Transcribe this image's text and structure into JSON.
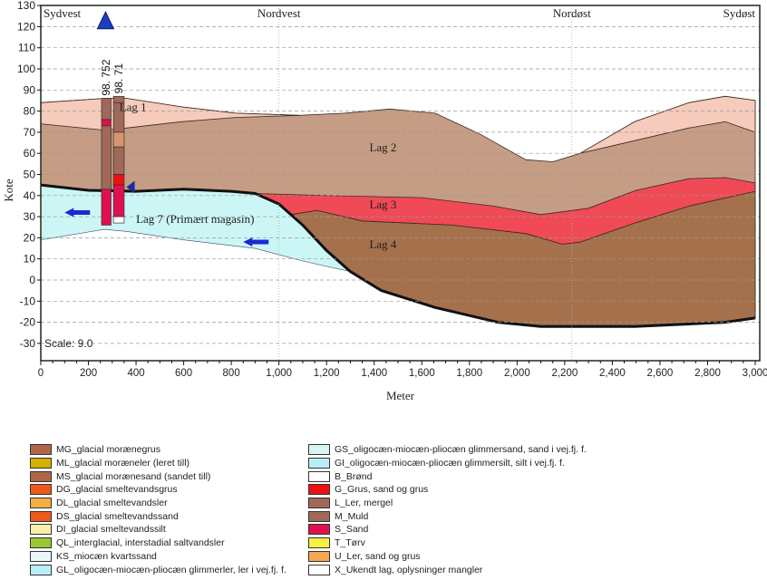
{
  "chart_data": {
    "type": "area",
    "title": "",
    "xlabel": "Meter",
    "ylabel": "Kote",
    "xlim": [
      0,
      3000
    ],
    "ylim": [
      -38,
      130
    ],
    "x_ticks": [
      "0",
      "200",
      "400",
      "600",
      "800",
      "1,000",
      "1,200",
      "1,400",
      "1,600",
      "1,800",
      "2,000",
      "2,200",
      "2,400",
      "2,600",
      "2,800",
      "3,000"
    ],
    "y_ticks": [
      -30,
      -20,
      -10,
      0,
      10,
      20,
      30,
      40,
      50,
      60,
      70,
      80,
      90,
      100,
      110,
      120,
      130
    ],
    "grid": true,
    "scale_label": "Scale: 9.0",
    "directions": [
      {
        "label": "Sydvest",
        "x": 0
      },
      {
        "label": "Nordvest",
        "x": 1000
      },
      {
        "label": "Nordøst",
        "x": 2230
      },
      {
        "label": "Sydøst",
        "x": 3000
      }
    ],
    "boundaries": {
      "terrain": [
        [
          0,
          84
        ],
        [
          266,
          86
        ],
        [
          362,
          86
        ],
        [
          590,
          82
        ],
        [
          818,
          79
        ],
        [
          1085,
          78
        ],
        [
          1275,
          79
        ],
        [
          1465,
          81
        ],
        [
          1656,
          79
        ],
        [
          1846,
          69
        ],
        [
          2036,
          57
        ],
        [
          2150,
          56
        ],
        [
          2265,
          60
        ],
        [
          2494,
          75
        ],
        [
          2722,
          84
        ],
        [
          2874,
          87
        ],
        [
          3000,
          85
        ]
      ],
      "lag1_base_west": [
        [
          0,
          74
        ],
        [
          266,
          71
        ],
        [
          362,
          72
        ],
        [
          590,
          75
        ],
        [
          818,
          77
        ],
        [
          1085,
          78
        ]
      ],
      "lag1_base_east": [
        [
          2265,
          60
        ],
        [
          2494,
          66
        ],
        [
          2722,
          72
        ],
        [
          2874,
          75
        ],
        [
          3000,
          70
        ]
      ],
      "lag2_base": [
        [
          900,
          41
        ],
        [
          1200,
          40
        ],
        [
          1600,
          39
        ],
        [
          1900,
          35
        ],
        [
          2100,
          31
        ],
        [
          2300,
          34
        ],
        [
          2500,
          42.5
        ],
        [
          2722,
          48
        ],
        [
          2874,
          48.5
        ],
        [
          3000,
          46
        ]
      ],
      "lag3_base": [
        [
          900,
          41
        ],
        [
          1050,
          31
        ],
        [
          1160,
          33
        ],
        [
          1350,
          28
        ],
        [
          1730,
          26
        ],
        [
          2036,
          22
        ],
        [
          2190,
          17
        ],
        [
          2265,
          18
        ],
        [
          2494,
          27
        ],
        [
          2722,
          35
        ],
        [
          3000,
          42
        ]
      ],
      "base": [
        [
          0,
          45
        ],
        [
          200,
          42.5
        ],
        [
          400,
          42
        ],
        [
          600,
          43
        ],
        [
          800,
          42
        ],
        [
          900,
          41
        ],
        [
          1000,
          36
        ],
        [
          1100,
          26
        ],
        [
          1200,
          14
        ],
        [
          1300,
          4
        ],
        [
          1430,
          -5
        ],
        [
          1656,
          -13
        ],
        [
          1920,
          -20
        ],
        [
          2100,
          -22
        ],
        [
          2494,
          -22
        ],
        [
          2874,
          -20
        ],
        [
          3000,
          -18
        ]
      ],
      "lag7_bottom": [
        [
          0,
          19
        ],
        [
          266,
          24
        ],
        [
          362,
          23
        ],
        [
          600,
          19
        ],
        [
          900,
          15
        ],
        [
          1100,
          9
        ],
        [
          1300,
          4
        ]
      ]
    },
    "layers": [
      {
        "name": "Lag 1",
        "color": "#f6cbbb",
        "label_at": [
          330,
          80
        ]
      },
      {
        "name": "Lag 2",
        "color": "#c59c84",
        "label_at": [
          1380,
          61
        ]
      },
      {
        "name": "Lag 3",
        "color": "#f04a56",
        "label_at": [
          1380,
          34
        ]
      },
      {
        "name": "Lag 4",
        "color": "#a5714c",
        "label_at": [
          1380,
          15
        ]
      },
      {
        "name": "Lag 7 (Primært magasin)",
        "color": "#ccf6f6",
        "label_at": [
          400,
          27
        ]
      }
    ],
    "boreholes": [
      {
        "label": "98. 752",
        "x0": 255,
        "x1": 295,
        "segments": [
          [
            86,
            76,
            "#a06858"
          ],
          [
            76,
            73,
            "#e01050"
          ],
          [
            73,
            43,
            "#a06858"
          ],
          [
            43,
            26,
            "#e01050"
          ]
        ]
      },
      {
        "label": "98. 71",
        "x0": 305,
        "x1": 350,
        "segments": [
          [
            87,
            84,
            "#a06858"
          ],
          [
            84,
            70,
            "#a06858"
          ],
          [
            70,
            63,
            "#d8946e"
          ],
          [
            63,
            50,
            "#a06858"
          ],
          [
            50,
            45,
            "#ee1010"
          ],
          [
            45,
            30,
            "#e01050"
          ],
          [
            30,
            27,
            "#ffffff"
          ]
        ]
      }
    ]
  },
  "legend_left": [
    {
      "label": "MG_glacial morænegrus",
      "color": "#b0664a"
    },
    {
      "label": "ML_glacial moræneler (leret till)",
      "color": "#d4b000"
    },
    {
      "label": "MS_glacial morænesand (sandet till)",
      "color": "#b0664a"
    },
    {
      "label": "DG_glacial smeltevandsgrus",
      "color": "#ee5a1a"
    },
    {
      "label": "DL_glacial smeltevandsler",
      "color": "#f5b040"
    },
    {
      "label": "DS_glacial smeltevandssand",
      "color": "#ee5a1a"
    },
    {
      "label": "DI_glacial smeltevandssilt",
      "color": "#f8f0a8"
    },
    {
      "label": "QL_interglacial, interstadial saltvandsler",
      "color": "#9bc830"
    },
    {
      "label": "KS_miocæn kvartssand",
      "color": "#e8f8f8"
    },
    {
      "label": "GL_oligocæn-miocæn-pliocæn glimmerler, ler i vej.fj. f.",
      "color": "#b8f0f8"
    }
  ],
  "legend_right": [
    {
      "label": "GS_oligocæn-miocæn-pliocæn glimmersand, sand i vej.fj. f.",
      "color": "#d8f4f4"
    },
    {
      "label": "GI_oligocæn-miocæn-pliocæn glimmersilt, silt i vej.fj. f.",
      "color": "#b8eef5"
    },
    {
      "label": "B_Brønd",
      "color": "#ffffff"
    },
    {
      "label": "G_Grus, sand og grus",
      "color": "#ee1010"
    },
    {
      "label": "L_Ler, mergel",
      "color": "#a06858"
    },
    {
      "label": "M_Muld",
      "color": "#a06858"
    },
    {
      "label": "S_Sand",
      "color": "#e01050"
    },
    {
      "label": "T_Tørv",
      "color": "#f8f040"
    },
    {
      "label": "U_Ler, sand og grus",
      "color": "#f5a850"
    },
    {
      "label": "X_Ukendt lag, oplysninger mangler",
      "color": "#ffffff"
    }
  ]
}
